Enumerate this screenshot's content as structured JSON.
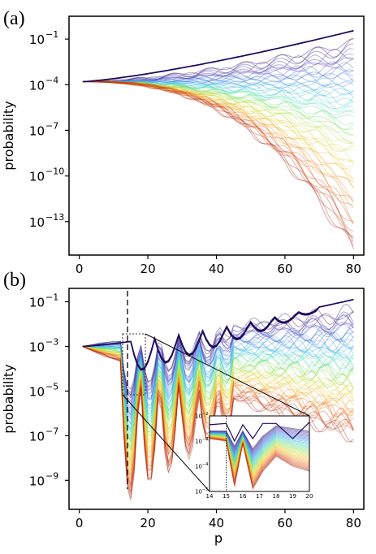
{
  "chart_data": [
    {
      "panel": "(a)",
      "type": "line",
      "xlabel": "",
      "ylabel": "probability",
      "yscale": "log",
      "xlim": [
        -3,
        83
      ],
      "ylim_exp": [
        -15.2,
        0.5
      ],
      "x_ticks": [
        0,
        20,
        40,
        60,
        80
      ],
      "y_ticks": [
        {
          "base": "10",
          "exp": "−1",
          "value": -1
        },
        {
          "base": "10",
          "exp": "−4",
          "value": -4
        },
        {
          "base": "10",
          "exp": "−7",
          "value": -7
        },
        {
          "base": "10",
          "exp": "−10",
          "value": -10
        },
        {
          "base": "10",
          "exp": "−13",
          "value": -13
        }
      ],
      "colormap": [
        "#1f0a5e",
        "#4b3ab8",
        "#3a78e0",
        "#2fb0e6",
        "#3fd7b8",
        "#7de05a",
        "#c8e03a",
        "#f2c42a",
        "#f08a1e",
        "#d94a16",
        "#a31c0c"
      ],
      "highlighted_series_color": "#2a0f3a",
      "start": {
        "x": 1,
        "y_exp": -3.8
      },
      "highlighted_end": {
        "x": 80,
        "y_exp": -0.45
      },
      "curve_count": 60
    },
    {
      "panel": "(b)",
      "type": "line",
      "xlabel": "p",
      "ylabel": "probability",
      "yscale": "log",
      "xlim": [
        -3,
        83
      ],
      "ylim_exp": [
        -10.3,
        -0.4
      ],
      "x_ticks": [
        0,
        20,
        40,
        60,
        80
      ],
      "y_ticks": [
        {
          "base": "10",
          "exp": "−1",
          "value": -1
        },
        {
          "base": "10",
          "exp": "−3",
          "value": -3
        },
        {
          "base": "10",
          "exp": "−5",
          "value": -5
        },
        {
          "base": "10",
          "exp": "−7",
          "value": -7
        },
        {
          "base": "10",
          "exp": "−9",
          "value": -9
        }
      ],
      "start": {
        "x": 1,
        "y_exp": -3
      },
      "highlighted_end": {
        "x": 80,
        "y_exp": -0.9
      },
      "dashed_vline_x": 15,
      "curve_count": 60,
      "inset": {
        "xlim": [
          14,
          20
        ],
        "ylim_exp": [
          -5,
          -2
        ],
        "x_ticks": [
          14,
          15,
          16,
          17,
          18,
          19,
          20
        ],
        "y_ticks": [
          {
            "base": "10",
            "exp": "−2",
            "value": -2
          },
          {
            "base": "10",
            "exp": "−3",
            "value": -3
          },
          {
            "base": "10",
            "exp": "−4",
            "value": -4
          },
          {
            "base": "10",
            "exp": "−5",
            "value": -5
          }
        ],
        "dotted_vline_x": 15
      }
    }
  ]
}
